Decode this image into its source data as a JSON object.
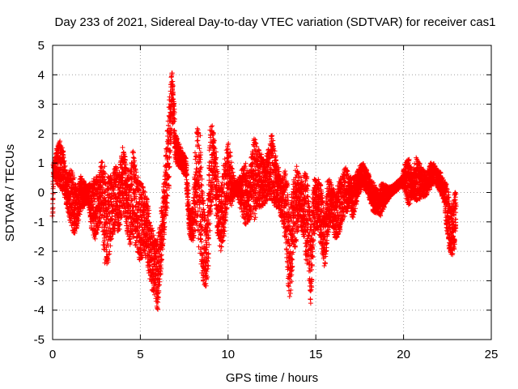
{
  "chart_data": {
    "type": "scatter",
    "title": "Day 233 of 2021, Sidereal Day-to-day VTEC variation (SDTVAR) for receiver cas1",
    "xlabel": "GPS time / hours",
    "ylabel": "SDTVAR / TECUs",
    "xlim": [
      0,
      25
    ],
    "ylim": [
      -5,
      5
    ],
    "xticks": [
      0,
      5,
      10,
      15,
      20,
      25
    ],
    "yticks": [
      -5,
      -4,
      -3,
      -2,
      -1,
      0,
      1,
      2,
      3,
      4,
      5
    ],
    "grid": true,
    "marker": "+",
    "color": "#ff0000",
    "series": [
      {
        "name": "SDTVAR",
        "envelope": [
          [
            0.0,
            -0.8,
            -0.6
          ],
          [
            0.05,
            0.6,
            1.0
          ],
          [
            0.2,
            0.3,
            1.5
          ],
          [
            0.4,
            0.2,
            1.8
          ],
          [
            0.6,
            0.0,
            1.4
          ],
          [
            0.8,
            -0.5,
            0.6
          ],
          [
            1.0,
            -1.0,
            0.8
          ],
          [
            1.2,
            -1.5,
            0.6
          ],
          [
            1.4,
            -1.2,
            0.2
          ],
          [
            1.6,
            -0.6,
            0.6
          ],
          [
            1.8,
            -0.5,
            0.4
          ],
          [
            2.0,
            -0.3,
            0.2
          ],
          [
            2.2,
            -1.2,
            0.4
          ],
          [
            2.4,
            -1.6,
            0.7
          ],
          [
            2.6,
            -1.2,
            0.4
          ],
          [
            2.8,
            -1.0,
            1.2
          ],
          [
            3.0,
            -2.8,
            0.8
          ],
          [
            3.2,
            -2.3,
            0.5
          ],
          [
            3.4,
            -1.5,
            0.6
          ],
          [
            3.6,
            -1.2,
            0.9
          ],
          [
            3.8,
            -1.5,
            0.8
          ],
          [
            4.0,
            -0.5,
            1.7
          ],
          [
            4.2,
            -1.2,
            0.9
          ],
          [
            4.4,
            -1.8,
            0.7
          ],
          [
            4.6,
            -1.5,
            1.5
          ],
          [
            4.8,
            -2.0,
            0.6
          ],
          [
            5.0,
            -2.5,
            0.4
          ],
          [
            5.2,
            -2.0,
            0.1
          ],
          [
            5.4,
            -2.5,
            -0.2
          ],
          [
            5.6,
            -3.2,
            -1.0
          ],
          [
            5.8,
            -3.5,
            -1.5
          ],
          [
            6.0,
            -4.1,
            -1.6
          ],
          [
            6.2,
            -2.4,
            -0.5
          ],
          [
            6.4,
            -1.2,
            0.8
          ],
          [
            6.6,
            -0.2,
            2.8
          ],
          [
            6.8,
            2.5,
            4.3
          ],
          [
            6.9,
            2.0,
            3.3
          ],
          [
            7.0,
            1.0,
            2.0
          ],
          [
            7.3,
            0.8,
            1.5
          ],
          [
            7.6,
            0.5,
            1.2
          ],
          [
            7.8,
            -1.5,
            -0.6
          ],
          [
            8.0,
            -1.7,
            -0.5
          ],
          [
            8.2,
            -1.2,
            2.3
          ],
          [
            8.4,
            -2.2,
            2.0
          ],
          [
            8.6,
            -3.2,
            -0.4
          ],
          [
            8.8,
            -3.2,
            -1.2
          ],
          [
            9.0,
            -1.0,
            2.5
          ],
          [
            9.2,
            0.2,
            2.0
          ],
          [
            9.4,
            -1.4,
            0.8
          ],
          [
            9.6,
            -2.0,
            0.3
          ],
          [
            9.8,
            -1.5,
            1.2
          ],
          [
            10.0,
            -0.2,
            1.8
          ],
          [
            10.2,
            -0.5,
            1.0
          ],
          [
            10.4,
            0.0,
            0.3
          ],
          [
            10.6,
            -0.3,
            0.5
          ],
          [
            10.8,
            -0.8,
            0.8
          ],
          [
            11.0,
            -1.2,
            1.0
          ],
          [
            11.2,
            -0.9,
            0.6
          ],
          [
            11.5,
            -1.0,
            1.9
          ],
          [
            11.7,
            -0.5,
            1.5
          ],
          [
            11.9,
            -0.5,
            1.3
          ],
          [
            12.1,
            -0.4,
            1.1
          ],
          [
            12.3,
            -0.2,
            1.5
          ],
          [
            12.5,
            -0.3,
            2.0
          ],
          [
            12.7,
            -0.5,
            1.3
          ],
          [
            12.9,
            -0.6,
            0.8
          ],
          [
            13.1,
            -1.0,
            0.5
          ],
          [
            13.3,
            -2.0,
            0.9
          ],
          [
            13.5,
            -3.8,
            -0.5
          ],
          [
            13.7,
            -2.5,
            0.4
          ],
          [
            13.9,
            -1.8,
            1.0
          ],
          [
            14.1,
            -1.0,
            0.5
          ],
          [
            14.3,
            -1.5,
            0.6
          ],
          [
            14.5,
            -2.5,
            0.8
          ],
          [
            14.7,
            -3.8,
            -1.0
          ],
          [
            14.9,
            -1.5,
            0.5
          ],
          [
            15.1,
            -1.2,
            0.6
          ],
          [
            15.3,
            -1.8,
            0.2
          ],
          [
            15.5,
            -2.6,
            -0.8
          ],
          [
            15.7,
            -1.5,
            0.7
          ],
          [
            15.9,
            -1.0,
            0.3
          ],
          [
            16.1,
            -1.6,
            0.0
          ],
          [
            16.3,
            -1.5,
            0.4
          ],
          [
            16.5,
            -1.0,
            0.6
          ],
          [
            16.7,
            -0.8,
            0.9
          ],
          [
            16.9,
            -0.5,
            0.6
          ],
          [
            17.1,
            -0.9,
            0.5
          ],
          [
            17.3,
            -0.4,
            0.6
          ],
          [
            17.5,
            0.0,
            0.9
          ],
          [
            17.7,
            0.2,
            1.0
          ],
          [
            17.9,
            0.0,
            0.8
          ],
          [
            18.1,
            -0.3,
            0.5
          ],
          [
            18.3,
            -0.7,
            0.3
          ],
          [
            18.5,
            -0.7,
            0.1
          ],
          [
            18.7,
            -0.8,
            0.3
          ],
          [
            18.9,
            -0.5,
            0.3
          ],
          [
            19.1,
            -0.3,
            0.2
          ],
          [
            19.3,
            -0.1,
            0.2
          ],
          [
            19.5,
            0.0,
            0.3
          ],
          [
            19.7,
            0.1,
            0.4
          ],
          [
            19.9,
            0.2,
            0.5
          ],
          [
            20.1,
            0.0,
            1.0
          ],
          [
            20.3,
            -0.5,
            1.2
          ],
          [
            20.5,
            -0.2,
            0.6
          ],
          [
            20.7,
            -0.3,
            1.3
          ],
          [
            20.9,
            -0.3,
            1.0
          ],
          [
            21.1,
            -0.2,
            0.8
          ],
          [
            21.3,
            -0.1,
            0.6
          ],
          [
            21.5,
            0.1,
            1.0
          ],
          [
            21.7,
            0.3,
            1.0
          ],
          [
            21.9,
            0.2,
            0.8
          ],
          [
            22.1,
            0.0,
            0.7
          ],
          [
            22.3,
            -0.3,
            0.4
          ],
          [
            22.5,
            -1.5,
            0.3
          ],
          [
            22.7,
            -2.3,
            -0.5
          ],
          [
            22.9,
            -2.0,
            0.1
          ],
          [
            23.0,
            -1.0,
            0.0
          ]
        ]
      }
    ]
  }
}
